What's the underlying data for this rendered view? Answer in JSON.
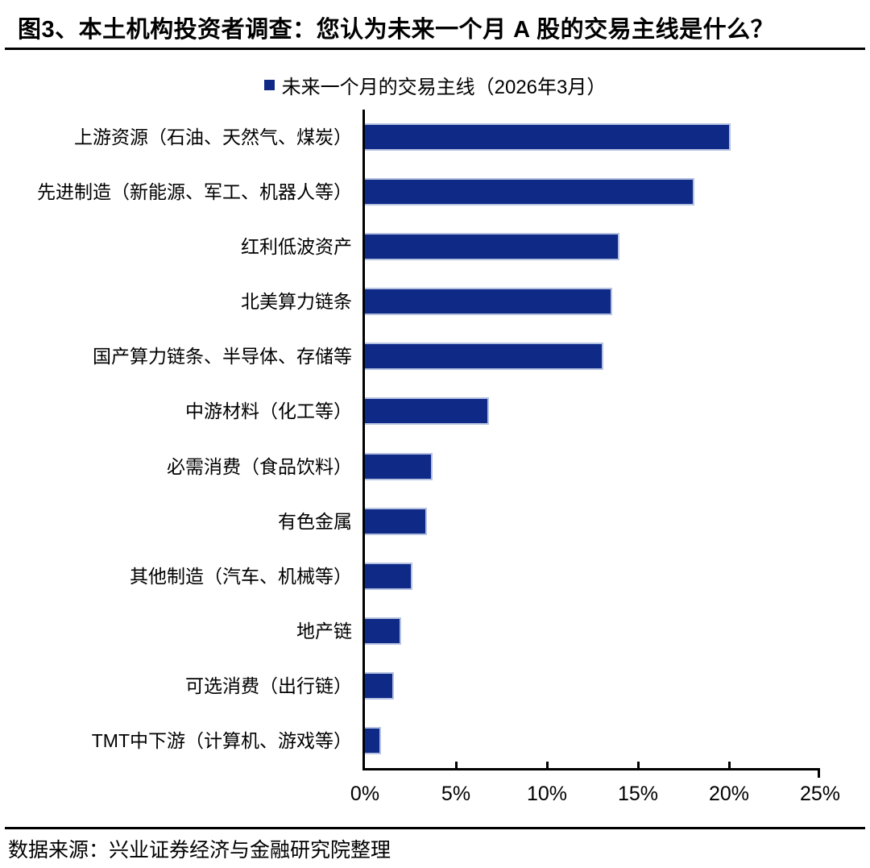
{
  "figure": {
    "title": "图3、本土机构投资者调查：您认为未来一个月 A 股的交易主线是什么？",
    "source": "数据来源：兴业证券经济与金融研究院整理"
  },
  "legend": {
    "label": "未来一个月的交易主线（2026年3月）"
  },
  "colors": {
    "bar_fill": "#0F2987",
    "bar_border": "#B6C2E1",
    "axis": "#000000"
  },
  "chart_data": {
    "type": "bar",
    "orientation": "horizontal",
    "title": "未来一个月的交易主线（2026年3月）",
    "categories": [
      "上游资源（石油、天然气、煤炭）",
      "先进制造（新能源、军工、机器人等）",
      "红利低波资产",
      "北美算力链条",
      "国产算力链条、半导体、存储等",
      "中游材料（化工等）",
      "必需消费（食品饮料）",
      "有色金属",
      "其他制造（汽车、机械等）",
      "地产链",
      "可选消费（出行链）",
      "TMT中下游（计算机、游戏等）"
    ],
    "values": [
      20.1,
      18.1,
      14.0,
      13.6,
      13.1,
      6.8,
      3.7,
      3.4,
      2.6,
      2.0,
      1.6,
      0.9
    ],
    "unit": "%",
    "xlim": [
      0,
      25
    ],
    "xtick_values": [
      0,
      5,
      10,
      15,
      20,
      25
    ],
    "xtick_labels": [
      "0%",
      "5%",
      "10%",
      "15%",
      "20%",
      "25%"
    ],
    "legend_position": "top-center",
    "grid": false
  }
}
